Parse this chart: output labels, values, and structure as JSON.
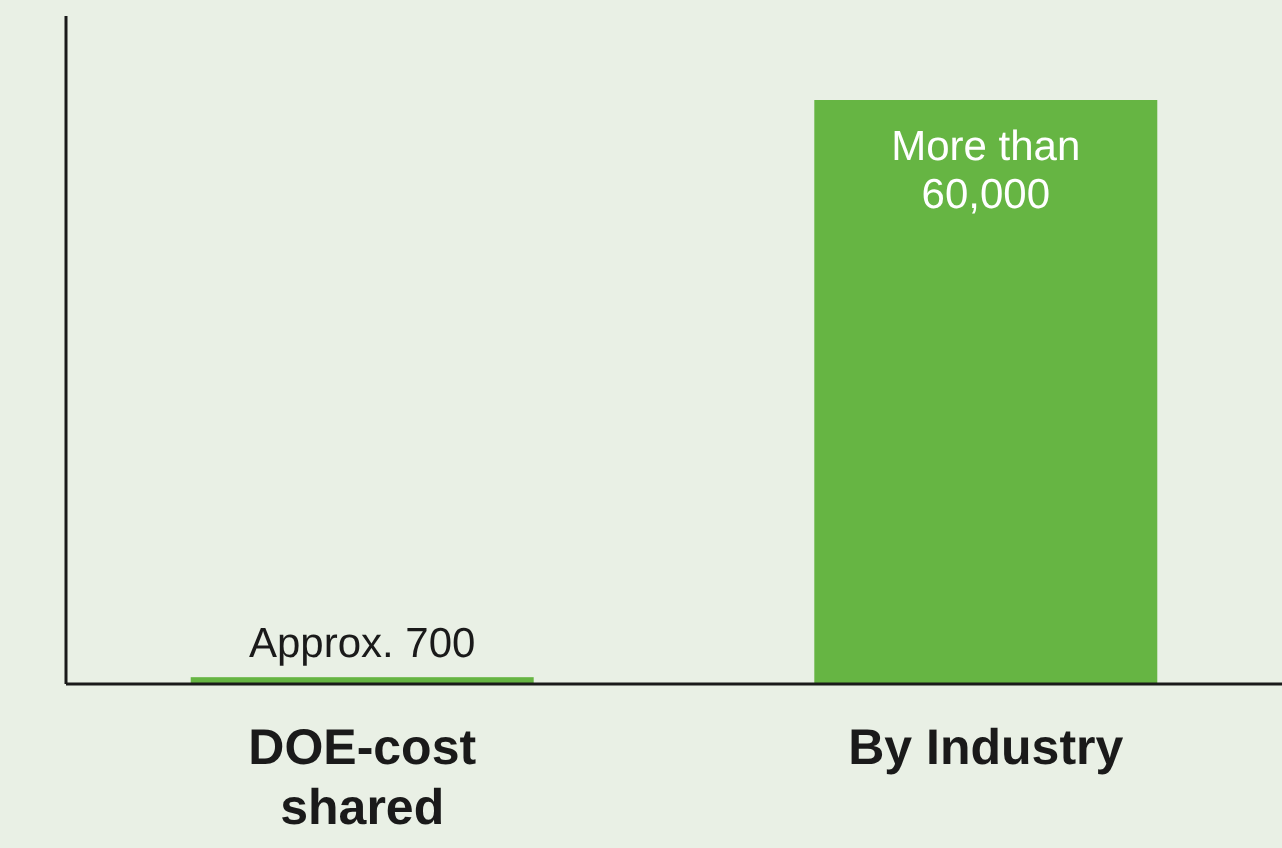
{
  "chart_data": {
    "type": "bar",
    "categories": [
      "DOE-cost shared",
      "By Industry"
    ],
    "values": [
      700,
      60000
    ],
    "value_labels": [
      "Approx. 700",
      "More than 60,000"
    ],
    "color": "#66b543"
  }
}
